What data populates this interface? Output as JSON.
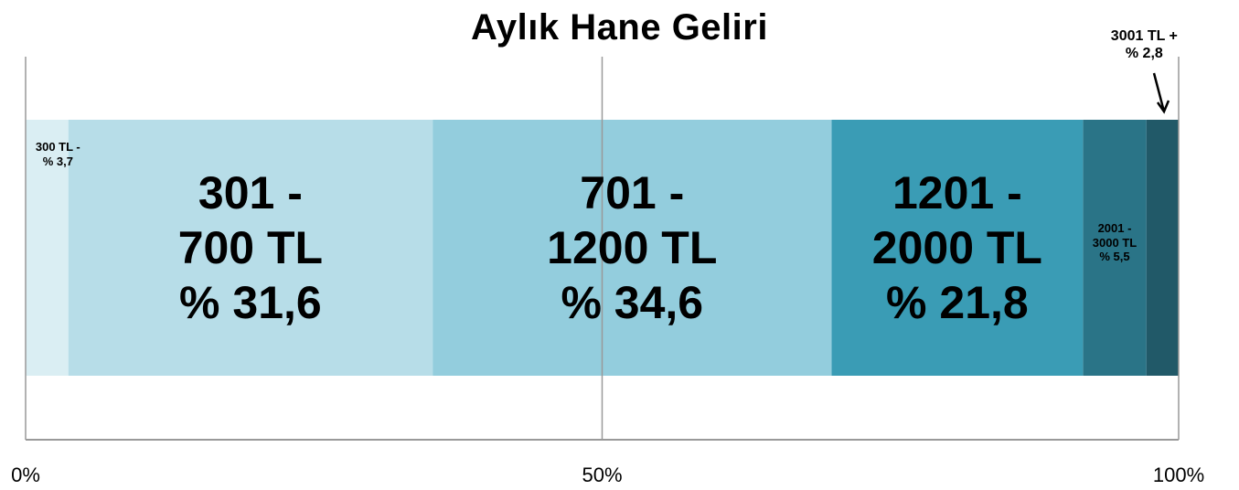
{
  "chart_data": {
    "type": "stacked-bar-100",
    "title": "Aylık Hane Geliri",
    "series": [
      {
        "name": "300 TL -",
        "color": "#daeef3",
        "values": [
          3.7
        ],
        "value_labels": [
          "% 3,7"
        ]
      },
      {
        "name": "301 - 700 TL",
        "color": "#b7dde8",
        "values": [
          31.6
        ],
        "value_labels": [
          "% 31,6"
        ]
      },
      {
        "name": "701 - 1200 TL",
        "color": "#93cddd",
        "values": [
          34.6
        ],
        "value_labels": [
          "% 34,6"
        ]
      },
      {
        "name": "1201 - 2000 TL",
        "color": "#3a9cb5",
        "values": [
          21.8
        ],
        "value_labels": [
          "% 21,8"
        ]
      },
      {
        "name": "2001 - 3000 TL",
        "color": "#2a7487",
        "values": [
          5.5
        ],
        "value_labels": [
          "% 5,5"
        ]
      },
      {
        "name": "3001 TL +",
        "color": "#215968",
        "values": [
          2.8
        ],
        "value_labels": [
          "% 2,8"
        ]
      }
    ],
    "xlim": [
      0,
      100
    ],
    "xticks": [
      {
        "value": 0,
        "label": "0%"
      },
      {
        "value": 50,
        "label": "50%"
      },
      {
        "value": 100,
        "label": "100%"
      }
    ],
    "grid": true
  }
}
